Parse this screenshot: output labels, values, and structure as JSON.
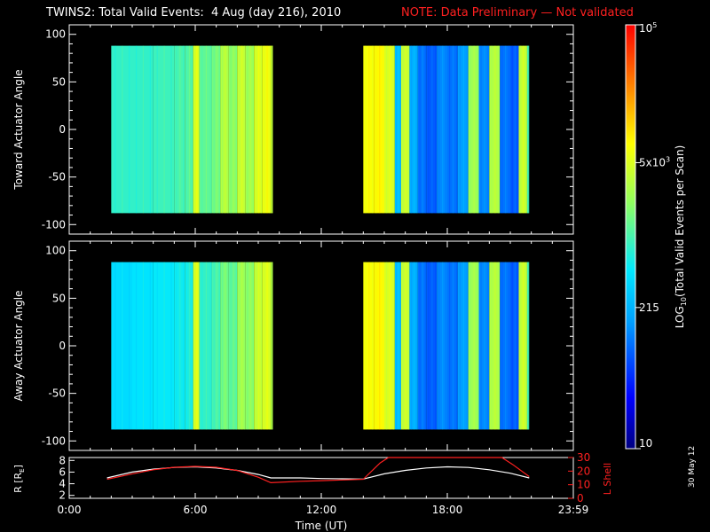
{
  "title": "TWINS2: Total Valid Events:  4 Aug (day 216), 2010",
  "note": "NOTE: Data Preliminary — Not validated",
  "stamp": "30 May 12",
  "colors": {
    "background": "#000000",
    "axes": "#ffffff",
    "note": "#ff2020",
    "rshell": "#ffffff",
    "lshell": "#ff2020"
  },
  "chart_data": [
    {
      "type": "heatmap",
      "panel": "top",
      "ylabel": "Toward Actuator Angle",
      "xlim": [
        0,
        24
      ],
      "ylim": [
        -110,
        110
      ],
      "yticks": [
        100,
        50,
        0,
        -50,
        -100
      ],
      "data_blocks_hours": [
        [
          2.0,
          9.6
        ],
        [
          14.0,
          21.8
        ]
      ],
      "data_angle_range": [
        -88,
        88
      ],
      "column_log_values": {
        "hours": [
          2.0,
          3.0,
          4.0,
          5.0,
          5.5,
          5.9,
          6.2,
          6.8,
          7.2,
          7.6,
          8.0,
          8.4,
          8.8,
          9.2,
          9.6,
          14.0,
          14.5,
          15.0,
          15.5,
          15.8,
          16.2,
          16.6,
          17.0,
          17.5,
          18.0,
          18.5,
          19.0,
          19.5,
          20.0,
          20.5,
          21.0,
          21.4,
          21.8
        ],
        "values": [
          2.9,
          2.9,
          2.95,
          3.0,
          3.05,
          3.7,
          3.1,
          3.2,
          3.5,
          3.3,
          3.6,
          3.4,
          3.7,
          3.8,
          3.6,
          3.85,
          3.9,
          3.7,
          2.4,
          3.6,
          2.3,
          2.0,
          1.9,
          2.1,
          2.0,
          2.2,
          3.4,
          2.1,
          3.5,
          2.0,
          1.9,
          3.6,
          3.0
        ]
      }
    },
    {
      "type": "heatmap",
      "panel": "middle",
      "ylabel": "Away Actuator Angle",
      "xlim": [
        0,
        24
      ],
      "ylim": [
        -110,
        110
      ],
      "yticks": [
        100,
        50,
        0,
        -50,
        -100
      ],
      "data_blocks_hours": [
        [
          2.0,
          9.6
        ],
        [
          14.0,
          21.8
        ]
      ],
      "data_angle_range": [
        -88,
        88
      ],
      "column_log_values": {
        "hours": [
          2.0,
          3.0,
          4.0,
          5.0,
          5.5,
          5.9,
          6.2,
          6.8,
          7.2,
          7.6,
          8.0,
          8.4,
          8.8,
          9.2,
          9.6,
          14.0,
          14.5,
          15.0,
          15.5,
          15.8,
          16.2,
          16.6,
          17.0,
          17.5,
          18.0,
          18.5,
          19.0,
          19.5,
          20.0,
          20.5,
          21.0,
          21.4,
          21.8
        ],
        "values": [
          2.6,
          2.65,
          2.7,
          2.75,
          2.8,
          3.7,
          2.9,
          3.0,
          3.2,
          3.1,
          3.4,
          3.3,
          3.6,
          3.7,
          3.5,
          3.85,
          3.9,
          3.7,
          2.4,
          3.6,
          2.3,
          2.0,
          1.9,
          2.1,
          2.0,
          2.2,
          3.4,
          2.1,
          3.5,
          2.0,
          1.9,
          3.6,
          3.0
        ]
      }
    },
    {
      "type": "line",
      "panel": "bottom",
      "xlabel": "Time (UT)",
      "xticks": [
        "0:00",
        "6:00",
        "12:00",
        "18:00",
        "23:59"
      ],
      "xtick_hours": [
        0,
        6,
        12,
        18,
        24
      ],
      "ylabel_left": "R [R",
      "ylabel_left_sub": "E",
      "ylabel_left_close": "]",
      "ylim_left": [
        1.5,
        8.5
      ],
      "yticks_left": [
        8,
        6,
        4,
        2
      ],
      "ylabel_right": "L Shell",
      "ylim_right": [
        0,
        30
      ],
      "yticks_right": [
        30,
        20,
        10,
        0
      ],
      "series": [
        {
          "axis": "left",
          "color": "white",
          "x": [
            1.8,
            3,
            4,
            5,
            6,
            7,
            8,
            9,
            9.6,
            11,
            12,
            13,
            14,
            15,
            16,
            17,
            18,
            19,
            20,
            21,
            21.9
          ],
          "y": [
            5.0,
            6.0,
            6.5,
            6.8,
            6.9,
            6.7,
            6.3,
            5.6,
            5.0,
            5.0,
            4.9,
            4.85,
            4.8,
            5.7,
            6.3,
            6.7,
            6.9,
            6.8,
            6.4,
            5.8,
            5.0
          ]
        },
        {
          "axis": "right",
          "color": "red",
          "x": [
            1.8,
            3,
            4,
            5,
            6,
            7,
            8,
            9,
            9.6,
            11,
            12,
            13,
            14,
            14.8,
            15.2,
            20.6,
            21.1,
            21.9
          ],
          "y": [
            14,
            18,
            21,
            22.8,
            23.5,
            22.8,
            20.5,
            15.5,
            11.5,
            12.5,
            13,
            13.5,
            14,
            26,
            30,
            30,
            25,
            16
          ]
        }
      ]
    },
    {
      "type": "colorbar",
      "label": "LOG",
      "label_sub": "10",
      "label_rest": "(Total Valid  Events per Scan)",
      "range_log": [
        1,
        5
      ],
      "ticks": [
        {
          "log": 5,
          "label": "10",
          "sup": "5"
        },
        {
          "log": 3.699,
          "label": "5x10",
          "sup": "3"
        },
        {
          "log": 2.332,
          "label": "215",
          "sup": ""
        },
        {
          "log": 1,
          "label": "10",
          "sup": ""
        }
      ]
    }
  ]
}
